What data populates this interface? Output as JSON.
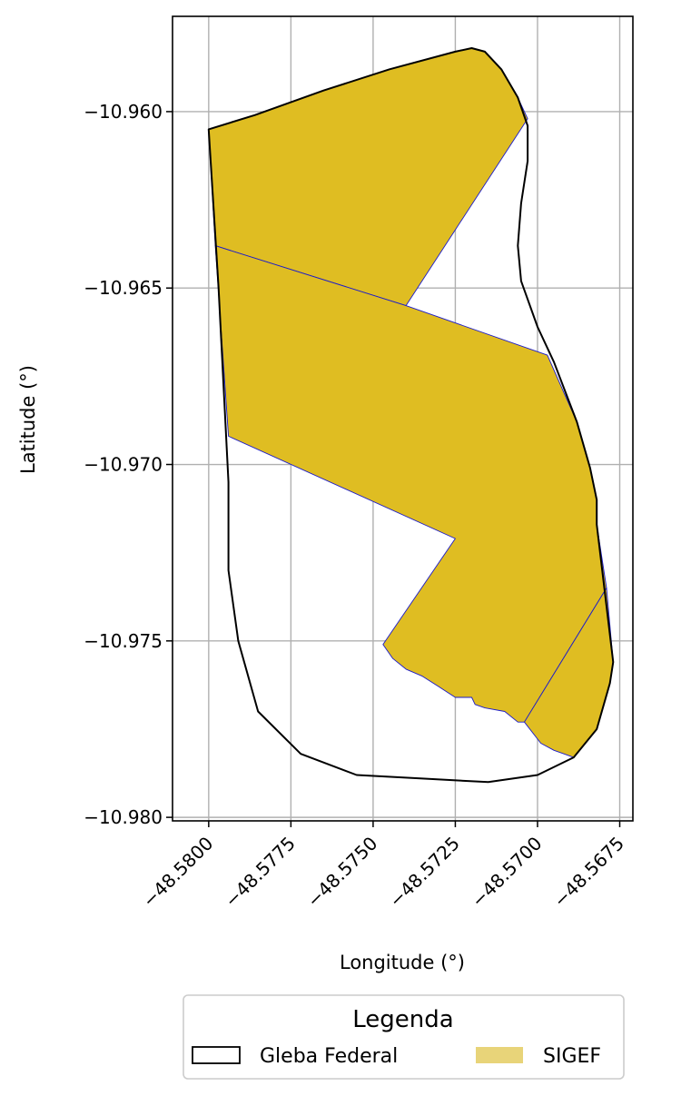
{
  "chart_data": {
    "type": "map",
    "xlabel": "Longitude (°)",
    "ylabel": "Latitude (°)",
    "xlim": [
      -48.5811,
      -48.5671
    ],
    "ylim": [
      -10.9801,
      -10.9573
    ],
    "grid": true,
    "x_ticks": [
      -48.58,
      -48.5775,
      -48.575,
      -48.5725,
      -48.57,
      -48.5675
    ],
    "x_tick_labels": [
      "−48.5800",
      "−48.5775",
      "−48.5750",
      "−48.5725",
      "−48.5700",
      "−48.5675"
    ],
    "y_ticks": [
      -10.96,
      -10.965,
      -10.97,
      -10.975,
      -10.98
    ],
    "y_tick_labels": [
      "−10.960",
      "−10.965",
      "−10.970",
      "−10.975",
      "−10.980"
    ],
    "colors": {
      "sigef_fill": "#dfbd22",
      "sigef_edge": "#1a1acc",
      "gleba_edge": "#000000",
      "legend_sigef_swatch": "#e8d479",
      "grid": "#b0b0b0"
    },
    "legend": {
      "title": "Legenda",
      "placement": "bottom-center",
      "entries": [
        {
          "label": "Gleba Federal",
          "style": "outline"
        },
        {
          "label": "SIGEF",
          "style": "filled"
        }
      ]
    },
    "layers": [
      {
        "name": "Gleba Federal",
        "polygon": [
          [
            -48.58,
            -10.9605
          ],
          [
            -48.5786,
            -10.9601
          ],
          [
            -48.5765,
            -10.9594
          ],
          [
            -48.5745,
            -10.9588
          ],
          [
            -48.5725,
            -10.9583
          ],
          [
            -48.572,
            -10.9582
          ],
          [
            -48.5716,
            -10.9583
          ],
          [
            -48.5711,
            -10.9588
          ],
          [
            -48.5706,
            -10.9596
          ],
          [
            -48.5703,
            -10.9604
          ],
          [
            -48.5703,
            -10.9614
          ],
          [
            -48.5705,
            -10.9626
          ],
          [
            -48.5706,
            -10.9638
          ],
          [
            -48.5705,
            -10.9648
          ],
          [
            -48.57,
            -10.9661
          ],
          [
            -48.5695,
            -10.9671
          ],
          [
            -48.5688,
            -10.9688
          ],
          [
            -48.5684,
            -10.9701
          ],
          [
            -48.5682,
            -10.971
          ],
          [
            -48.5682,
            -10.9717
          ],
          [
            -48.5677,
            -10.9756
          ],
          [
            -48.5678,
            -10.9762
          ],
          [
            -48.5682,
            -10.9775
          ],
          [
            -48.5689,
            -10.9783
          ],
          [
            -48.57,
            -10.9788
          ],
          [
            -48.5715,
            -10.979
          ],
          [
            -48.5735,
            -10.9789
          ],
          [
            -48.5755,
            -10.9788
          ],
          [
            -48.5772,
            -10.9782
          ],
          [
            -48.5785,
            -10.977
          ],
          [
            -48.5791,
            -10.975
          ],
          [
            -48.5794,
            -10.973
          ],
          [
            -48.5794,
            -10.9705
          ],
          [
            -48.5797,
            -10.965
          ],
          [
            -48.58,
            -10.9605
          ]
        ]
      },
      {
        "name": "SIGEF",
        "polygons": [
          [
            [
              -48.58,
              -10.9605
            ],
            [
              -48.5786,
              -10.9601
            ],
            [
              -48.5765,
              -10.9594
            ],
            [
              -48.5745,
              -10.9588
            ],
            [
              -48.5725,
              -10.9583
            ],
            [
              -48.572,
              -10.9582
            ],
            [
              -48.5716,
              -10.9583
            ],
            [
              -48.5711,
              -10.9588
            ],
            [
              -48.5706,
              -10.9596
            ],
            [
              -48.5703,
              -10.9602
            ],
            [
              -48.574,
              -10.9655
            ],
            [
              -48.5798,
              -10.9638
            ]
          ],
          [
            [
              -48.5798,
              -10.9638
            ],
            [
              -48.574,
              -10.9655
            ],
            [
              -48.5697,
              -10.9669
            ],
            [
              -48.5688,
              -10.9688
            ],
            [
              -48.5684,
              -10.9701
            ],
            [
              -48.5682,
              -10.971
            ],
            [
              -48.5682,
              -10.9717
            ],
            [
              -48.5679,
              -10.9735
            ],
            [
              -48.5704,
              -10.9773
            ],
            [
              -48.5706,
              -10.9773
            ],
            [
              -48.571,
              -10.977
            ],
            [
              -48.5716,
              -10.9769
            ],
            [
              -48.5719,
              -10.9768
            ],
            [
              -48.572,
              -10.9766
            ],
            [
              -48.5725,
              -10.9766
            ],
            [
              -48.573,
              -10.9763
            ],
            [
              -48.5735,
              -10.976
            ],
            [
              -48.574,
              -10.9758
            ],
            [
              -48.5744,
              -10.9755
            ],
            [
              -48.5747,
              -10.9751
            ],
            [
              -48.5725,
              -10.9721
            ],
            [
              -48.5794,
              -10.9692
            ]
          ],
          [
            [
              -48.5679,
              -10.9735
            ],
            [
              -48.5677,
              -10.9756
            ],
            [
              -48.5678,
              -10.9762
            ],
            [
              -48.5682,
              -10.9775
            ],
            [
              -48.5689,
              -10.9783
            ],
            [
              -48.5692,
              -10.9782
            ],
            [
              -48.5695,
              -10.9781
            ],
            [
              -48.5699,
              -10.9779
            ],
            [
              -48.5704,
              -10.9773
            ]
          ]
        ]
      }
    ]
  }
}
